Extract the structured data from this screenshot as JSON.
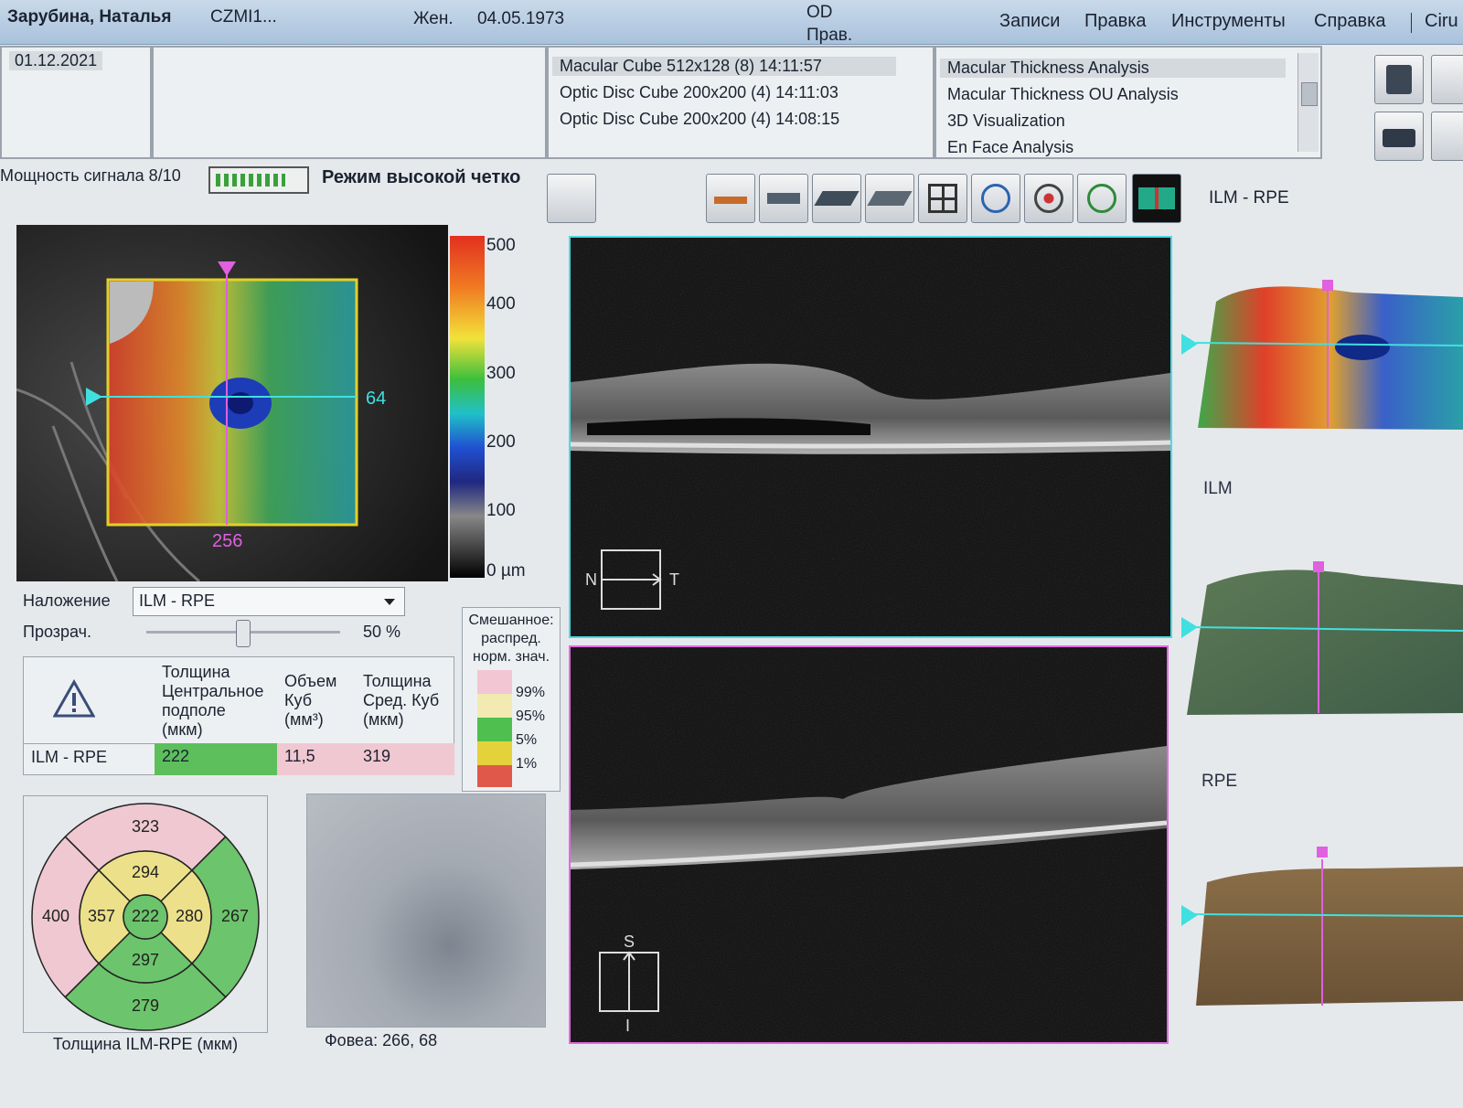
{
  "header": {
    "patient": "Зарубина, Наталья",
    "id": "CZMI1...",
    "sex": "Жен.",
    "dob": "04.05.1973",
    "eye": "OD",
    "eye_label": "Прав.",
    "menu": [
      "Записи",
      "Правка",
      "Инструменты",
      "Справка",
      "Ciru"
    ]
  },
  "exam_date": "01.12.2021",
  "scans": [
    "Macular Cube 512x128 (8) 14:11:57",
    "Optic Disc Cube 200x200 (4) 14:11:03",
    "Optic Disc Cube 200x200 (4) 14:08:15"
  ],
  "analyses": [
    "Macular Thickness Analysis",
    "Macular Thickness OU Analysis",
    "3D Visualization",
    "En Face Analysis"
  ],
  "signal": {
    "label": "Мощность сигнала 8/10",
    "mode": "Режим высокой четко"
  },
  "layer_label": "ILM - RPE",
  "thickness_map": {
    "scale": [
      "500",
      "400",
      "300",
      "200",
      "100",
      "0 µm"
    ],
    "h_line": "64",
    "v_line": "256"
  },
  "overlay": {
    "label": "Наложение",
    "value": "ILM - RPE",
    "transparency_label": "Прозрач.",
    "transparency": "50 %"
  },
  "table": {
    "header": [
      "Толщина Центральное подполе (мкм)",
      "Объем Куб (мм³)",
      "Толщина Сред. Куб (мкм)"
    ],
    "rows": [
      [
        "ILM - RPE",
        "222",
        "11,5",
        "319"
      ]
    ]
  },
  "legend": {
    "title": "Смешанное: распред. норм. знач.",
    "levels": [
      "99%",
      "95%",
      "5%",
      "1%"
    ]
  },
  "etdrs": {
    "center": "222",
    "inner": [
      "294",
      "280",
      "297",
      "357"
    ],
    "outer": [
      "323",
      "267",
      "279",
      "400"
    ],
    "caption": "Толщина ILM-RPE (мкм)"
  },
  "fovea": "Фовеа: 266, 68",
  "bscan": {
    "horizontal": {
      "left": "N",
      "right": "T"
    },
    "vertical": {
      "top": "S",
      "bottom": "I"
    }
  },
  "surfaces": {
    "ilm": "ILM",
    "rpe": "RPE"
  }
}
